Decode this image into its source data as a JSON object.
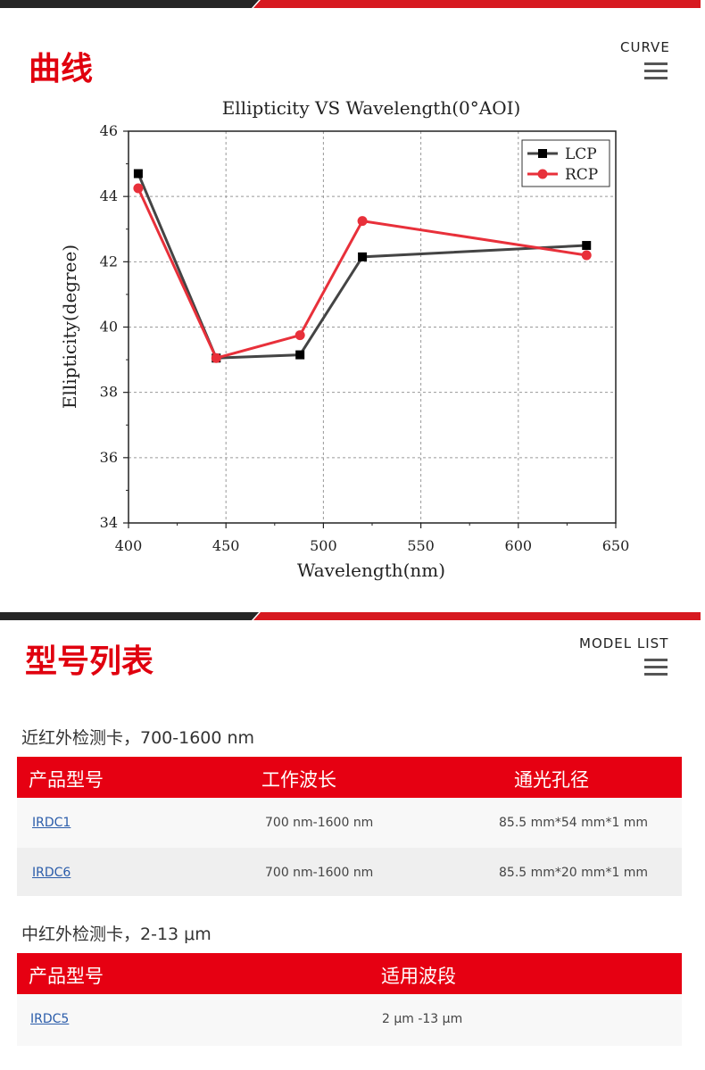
{
  "curve_section": {
    "title": "曲线",
    "subtitle": "CURVE"
  },
  "model_section": {
    "title": "型号列表",
    "subtitle": "MODEL LIST"
  },
  "chart_data": {
    "type": "line",
    "title": "Ellipticity VS Wavelength(0°AOI)",
    "xlabel": "Wavelength(nm)",
    "ylabel": "Ellipticity(degree)",
    "xlim": [
      400,
      650
    ],
    "ylim": [
      34,
      46
    ],
    "xticks": [
      "400",
      "450",
      "500",
      "550",
      "600",
      "650"
    ],
    "yticks": [
      "34",
      "36",
      "38",
      "40",
      "42",
      "44",
      "46"
    ],
    "grid": true,
    "legend_position": "top-right",
    "series": [
      {
        "name": "LCP",
        "color": "#444444",
        "marker": "square",
        "x": [
          405,
          445,
          488,
          520,
          635
        ],
        "y": [
          44.7,
          39.05,
          39.15,
          42.15,
          42.5
        ]
      },
      {
        "name": "RCP",
        "color": "#e8303a",
        "marker": "circle",
        "x": [
          405,
          445,
          488,
          520,
          635
        ],
        "y": [
          44.25,
          39.05,
          39.75,
          43.25,
          42.2
        ]
      }
    ]
  },
  "nir_group": {
    "label": "近红外检测卡，700-1600 nm",
    "headers": [
      "产品型号",
      "工作波长",
      "通光孔径"
    ],
    "rows": [
      {
        "model": "IRDC1",
        "wavelength": "700 nm-1600 nm",
        "aperture": "85.5 mm*54 mm*1 mm"
      },
      {
        "model": "IRDC6",
        "wavelength": "700 nm-1600 nm",
        "aperture": "85.5 mm*20 mm*1 mm"
      }
    ]
  },
  "mir_group": {
    "label": "中红外检测卡，2-13 μm",
    "headers": [
      "产品型号",
      "适用波段"
    ],
    "rows": [
      {
        "model": "IRDC5",
        "band": "2 μm -13 μm"
      }
    ]
  },
  "icons": {
    "menu": "hamburger-menu-icon"
  }
}
